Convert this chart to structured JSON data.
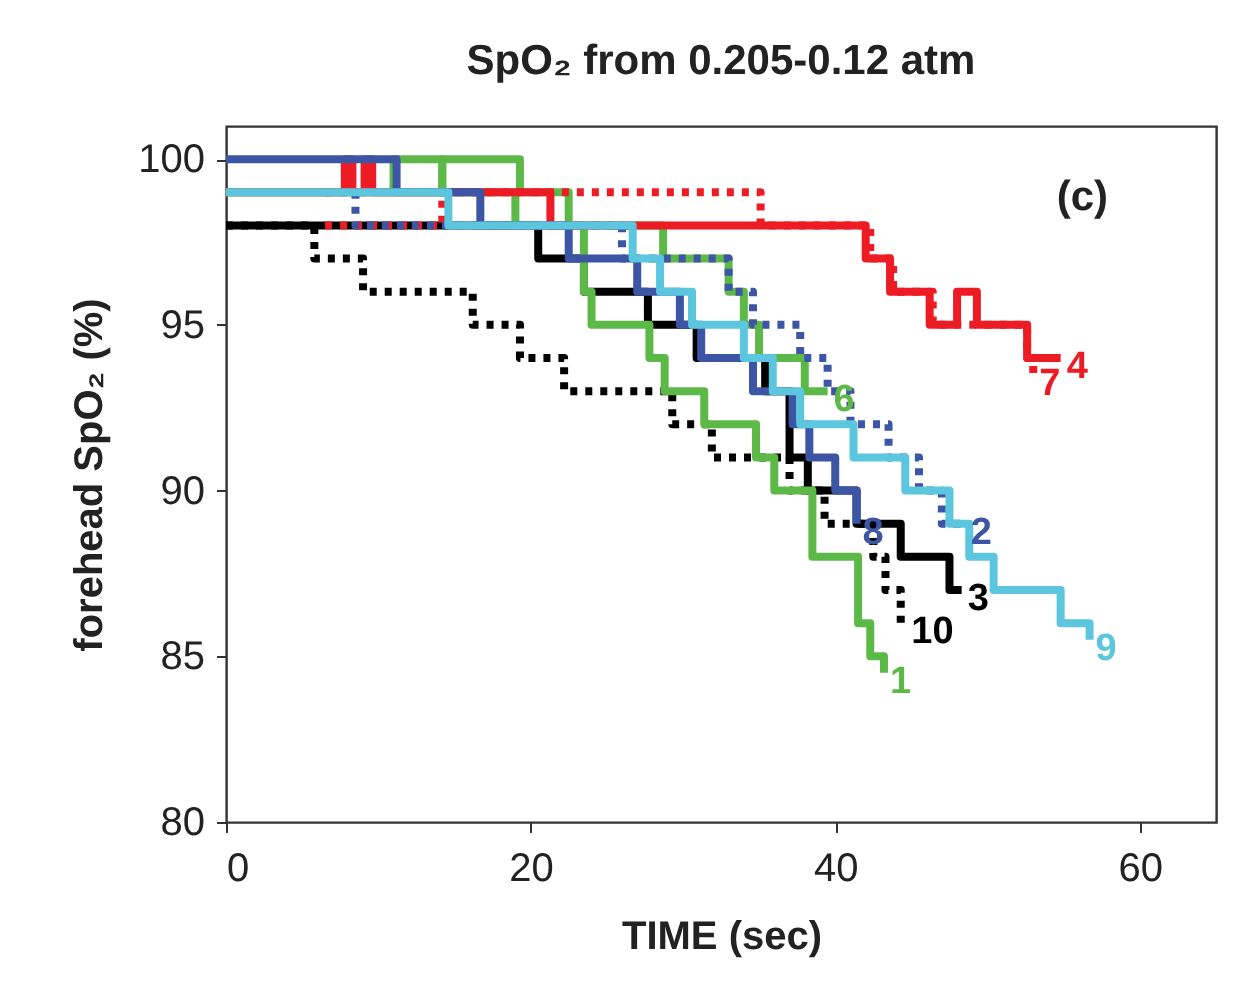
{
  "chart_data": {
    "type": "step",
    "title": "SpO₂ from 0.205-0.12 atm",
    "xlabel": "TIME (sec)",
    "ylabel": "forehead SpO₂ (%)",
    "annotations": [
      "(c)"
    ],
    "xlim": [
      0,
      65
    ],
    "xticks": [
      0,
      20,
      40,
      60
    ],
    "ylim": [
      80,
      101
    ],
    "yticks": [
      80,
      85,
      90,
      95,
      100
    ],
    "series": [
      {
        "name": "10",
        "color": "#000000",
        "line_style": "dotted",
        "x": [
          0,
          5.8,
          9,
          16.2,
          19.3,
          22.2,
          29.3,
          31.9,
          37,
          39.3,
          42.5,
          43.3,
          44.3,
          44.6
        ],
        "values": [
          98,
          97,
          96,
          95,
          94,
          93,
          92,
          91,
          90,
          89,
          88,
          87,
          86,
          86
        ]
      },
      {
        "name": "3",
        "color": "#000000",
        "line_style": "solid",
        "x": [
          0,
          20.5,
          23.5,
          27.7,
          30.9,
          35.4,
          37,
          38.2,
          41.4,
          44.3,
          47.5,
          48.3
        ],
        "values": [
          98,
          97,
          96,
          95,
          94,
          93,
          91,
          90,
          89,
          88,
          87,
          87
        ]
      },
      {
        "name": "1",
        "color": "#5db947",
        "line_style": "solid",
        "x": [
          0,
          11,
          14.2,
          19,
          23.5,
          24,
          27.8,
          28.8,
          31.4,
          34.8,
          36,
          38.5,
          41.5,
          42.3,
          43.2
        ],
        "values": [
          99,
          100,
          99,
          98,
          96,
          95,
          94,
          93,
          92,
          91,
          90,
          88,
          86,
          85,
          84.5
        ]
      },
      {
        "name": "6",
        "color": "#5db947",
        "line_style": "solid",
        "x": [
          0,
          14.2,
          19.3,
          22.5,
          28.7,
          33,
          34,
          35,
          38,
          39.5
        ],
        "values": [
          99,
          100,
          99,
          98,
          97,
          96,
          95,
          94,
          93,
          93
        ]
      },
      {
        "name": "7",
        "color": "#ed1c24",
        "line_style": "dotted",
        "x": [
          6.5,
          14.2,
          35.1,
          42.3,
          43.8,
          46.4,
          52.6,
          53.0
        ],
        "values": [
          98,
          99,
          98,
          97,
          96,
          95,
          94,
          93.5
        ]
      },
      {
        "name": "4",
        "color": "#ed1c24",
        "line_style": "solid",
        "x": [
          0,
          7.8,
          8.3,
          9.1,
          9.6,
          21.3,
          42,
          43.6,
          46.2,
          48,
          49.3,
          52.6,
          54.8
        ],
        "values": [
          99,
          100,
          99,
          100,
          99,
          98,
          97,
          96,
          95,
          96,
          95,
          94,
          94
        ]
      },
      {
        "name": "8",
        "color": "#3c55a5",
        "line_style": "solid",
        "x": [
          0,
          11.2,
          16.7,
          22.5,
          27,
          29.8,
          31.2,
          34.6,
          37.2,
          38.3,
          40,
          41.4
        ],
        "values": [
          100,
          99,
          98,
          97,
          96,
          95,
          94,
          93,
          92,
          91,
          90,
          89
        ]
      },
      {
        "name": "2",
        "color": "#3c55a5",
        "line_style": "dotted",
        "x": [
          6.5,
          8.5,
          26,
          33,
          34.6,
          37.7,
          39.5,
          41,
          43.5,
          45.5,
          47,
          48.5
        ],
        "values": [
          99,
          98,
          97,
          96,
          95,
          94,
          93,
          92,
          91,
          90,
          89,
          89
        ]
      },
      {
        "name": "9",
        "color": "#5bc6dd",
        "line_style": "solid",
        "x": [
          0,
          14.6,
          26.7,
          28.5,
          30.6,
          34,
          35.9,
          37.7,
          41.2,
          44.6,
          47.5,
          48.8,
          50.4,
          54.8,
          56.7
        ],
        "values": [
          99,
          98,
          97,
          96,
          95,
          94,
          93,
          92,
          91,
          90,
          89,
          88,
          87,
          86,
          85.5
        ]
      }
    ]
  }
}
